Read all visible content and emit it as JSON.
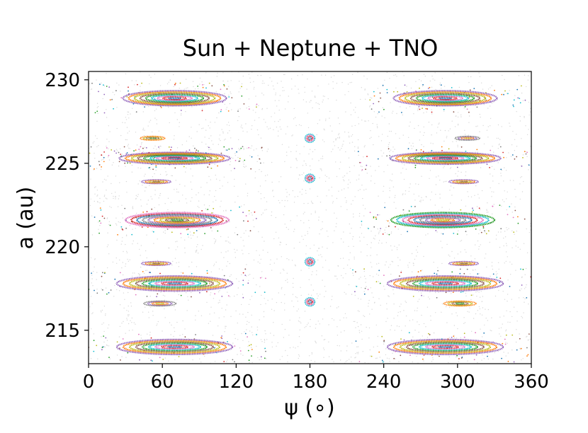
{
  "chart_data": {
    "type": "scatter",
    "title": "Sun + Neptune + TNO",
    "xlabel": "ψ (∘)",
    "ylabel": "a (au)",
    "xlim": [
      0,
      360
    ],
    "ylim": [
      213.0,
      230.5
    ],
    "xticks": [
      0,
      60,
      120,
      180,
      240,
      300,
      360
    ],
    "yticks": [
      215,
      220,
      225,
      230
    ],
    "grid": false,
    "background_points_color": "#d9d9d9",
    "series_colors": [
      "#1f77b4",
      "#ff7f0e",
      "#2ca02c",
      "#d62728",
      "#9467bd",
      "#8c564b",
      "#e377c2",
      "#7f7f7f",
      "#bcbd22",
      "#17becf"
    ],
    "islands": [
      {
        "psi_center": 70,
        "a_center": 228.9,
        "psi_halfwidth": 42,
        "a_halfwidth": 0.45
      },
      {
        "psi_center": 290,
        "a_center": 228.9,
        "psi_halfwidth": 42,
        "a_halfwidth": 0.45
      },
      {
        "psi_center": 70,
        "a_center": 225.3,
        "psi_halfwidth": 45,
        "a_halfwidth": 0.35
      },
      {
        "psi_center": 290,
        "a_center": 225.3,
        "psi_halfwidth": 45,
        "a_halfwidth": 0.35
      },
      {
        "psi_center": 72,
        "a_center": 221.6,
        "psi_halfwidth": 42,
        "a_halfwidth": 0.45
      },
      {
        "psi_center": 288,
        "a_center": 221.6,
        "psi_halfwidth": 42,
        "a_halfwidth": 0.45
      },
      {
        "psi_center": 70,
        "a_center": 217.8,
        "psi_halfwidth": 47,
        "a_halfwidth": 0.45
      },
      {
        "psi_center": 290,
        "a_center": 217.8,
        "psi_halfwidth": 47,
        "a_halfwidth": 0.45
      },
      {
        "psi_center": 70,
        "a_center": 214.0,
        "psi_halfwidth": 47,
        "a_halfwidth": 0.45
      },
      {
        "psi_center": 290,
        "a_center": 214.0,
        "psi_halfwidth": 47,
        "a_halfwidth": 0.45
      },
      {
        "psi_center": 52,
        "a_center": 226.5,
        "psi_halfwidth": 10,
        "a_halfwidth": 0.12
      },
      {
        "psi_center": 308,
        "a_center": 226.5,
        "psi_halfwidth": 10,
        "a_halfwidth": 0.12
      },
      {
        "psi_center": 55,
        "a_center": 223.9,
        "psi_halfwidth": 12,
        "a_halfwidth": 0.12
      },
      {
        "psi_center": 305,
        "a_center": 223.9,
        "psi_halfwidth": 12,
        "a_halfwidth": 0.12
      },
      {
        "psi_center": 55,
        "a_center": 219.0,
        "psi_halfwidth": 12,
        "a_halfwidth": 0.12
      },
      {
        "psi_center": 305,
        "a_center": 219.0,
        "psi_halfwidth": 12,
        "a_halfwidth": 0.12
      },
      {
        "psi_center": 58,
        "a_center": 216.6,
        "psi_halfwidth": 13,
        "a_halfwidth": 0.15
      },
      {
        "psi_center": 302,
        "a_center": 216.6,
        "psi_halfwidth": 13,
        "a_halfwidth": 0.15
      },
      {
        "psi_center": 180,
        "a_center": 226.5,
        "psi_halfwidth": 4,
        "a_halfwidth": 0.25
      },
      {
        "psi_center": 180,
        "a_center": 224.1,
        "psi_halfwidth": 4,
        "a_halfwidth": 0.25
      },
      {
        "psi_center": 180,
        "a_center": 219.1,
        "psi_halfwidth": 4,
        "a_halfwidth": 0.25
      },
      {
        "psi_center": 180,
        "a_center": 216.7,
        "psi_halfwidth": 4,
        "a_halfwidth": 0.25
      }
    ]
  }
}
